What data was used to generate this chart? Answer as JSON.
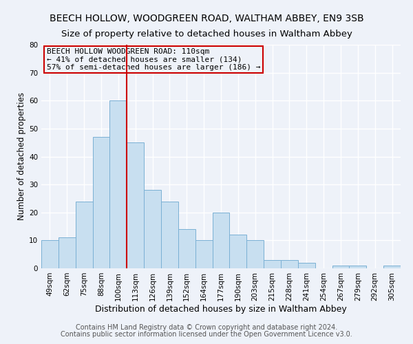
{
  "title1": "BEECH HOLLOW, WOODGREEN ROAD, WALTHAM ABBEY, EN9 3SB",
  "title2": "Size of property relative to detached houses in Waltham Abbey",
  "xlabel": "Distribution of detached houses by size in Waltham Abbey",
  "ylabel": "Number of detached properties",
  "bar_labels": [
    "49sqm",
    "62sqm",
    "75sqm",
    "88sqm",
    "100sqm",
    "113sqm",
    "126sqm",
    "139sqm",
    "152sqm",
    "164sqm",
    "177sqm",
    "190sqm",
    "203sqm",
    "215sqm",
    "228sqm",
    "241sqm",
    "254sqm",
    "267sqm",
    "279sqm",
    "292sqm",
    "305sqm"
  ],
  "bar_values": [
    10,
    11,
    24,
    47,
    60,
    45,
    28,
    24,
    14,
    10,
    20,
    12,
    10,
    3,
    3,
    2,
    0,
    1,
    1,
    0,
    1
  ],
  "bar_color": "#c8dff0",
  "bar_edge_color": "#7ab0d4",
  "vline_x": 4.5,
  "vline_color": "#cc0000",
  "annotation_title": "BEECH HOLLOW WOODGREEN ROAD: 110sqm",
  "annotation_line1": "← 41% of detached houses are smaller (134)",
  "annotation_line2": "57% of semi-detached houses are larger (186) →",
  "ylim": [
    0,
    80
  ],
  "yticks": [
    0,
    10,
    20,
    30,
    40,
    50,
    60,
    70,
    80
  ],
  "footer1": "Contains HM Land Registry data © Crown copyright and database right 2024.",
  "footer2": "Contains public sector information licensed under the Open Government Licence v3.0.",
  "background_color": "#eef2f9",
  "grid_color": "#ffffff",
  "title1_fontsize": 10,
  "title2_fontsize": 9.5,
  "xlabel_fontsize": 9,
  "ylabel_fontsize": 8.5,
  "tick_fontsize": 7.5,
  "annotation_fontsize": 8,
  "footer_fontsize": 7
}
